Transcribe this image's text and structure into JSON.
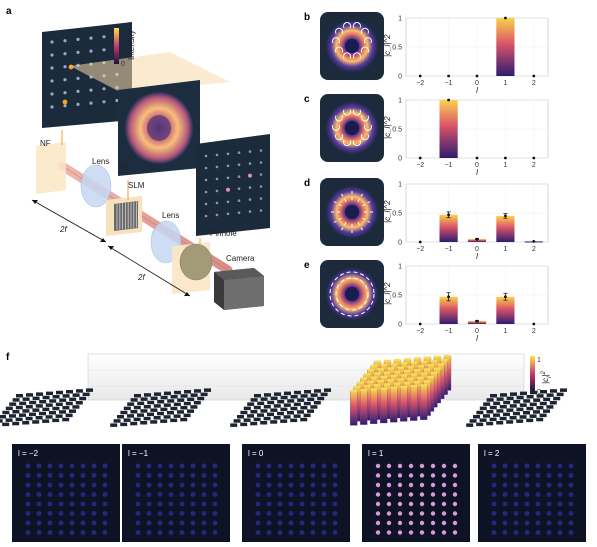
{
  "panels": {
    "a": {
      "label": "a",
      "texts": {
        "nf1": "NF",
        "nf2": "NF",
        "ff": "FF",
        "slm": "SLM",
        "lens1": "Lens",
        "lens2": "Lens",
        "pinhole": "Pinhole",
        "camera": "Camera",
        "twof1": "2f",
        "twof2": "2f"
      },
      "colorbar": {
        "title": "Intensity",
        "max": "1",
        "min": "0"
      }
    },
    "f": {
      "label": "f"
    }
  },
  "chart_data": [
    {
      "type": "bar",
      "panel": "b",
      "categories": [
        "−2",
        "−1",
        "0",
        "1",
        "2"
      ],
      "values": [
        0.0,
        0.0,
        0.0,
        1.0,
        0.0
      ],
      "errors": [
        0,
        0,
        0,
        0,
        0
      ],
      "ylabel": "|c_l|^2",
      "xlabel": "l",
      "ylim": [
        0,
        1
      ],
      "yticks": [
        "0",
        "0.5",
        "1"
      ],
      "grid": true
    },
    {
      "type": "bar",
      "panel": "c",
      "categories": [
        "−2",
        "−1",
        "0",
        "1",
        "2"
      ],
      "values": [
        0.0,
        1.0,
        0.0,
        0.0,
        0.0
      ],
      "errors": [
        0,
        0,
        0,
        0,
        0
      ],
      "ylabel": "|c_l|^2",
      "xlabel": "l",
      "ylim": [
        0,
        1
      ],
      "yticks": [
        "0",
        "0.5",
        "1"
      ],
      "grid": true
    },
    {
      "type": "bar",
      "panel": "d",
      "categories": [
        "−2",
        "−1",
        "0",
        "1",
        "2"
      ],
      "values": [
        0.0,
        0.47,
        0.05,
        0.45,
        0.01
      ],
      "errors": [
        0,
        0.05,
        0.01,
        0.04,
        0
      ],
      "ylabel": "|c_l|^2",
      "xlabel": "l",
      "ylim": [
        0,
        1
      ],
      "yticks": [
        "0",
        "0.5",
        "1"
      ],
      "grid": true
    },
    {
      "type": "bar",
      "panel": "e",
      "categories": [
        "−2",
        "−1",
        "0",
        "1",
        "2"
      ],
      "values": [
        0.0,
        0.47,
        0.05,
        0.47,
        0.0
      ],
      "errors": [
        0,
        0.07,
        0.01,
        0.06,
        0
      ],
      "ylabel": "|c_l|^2",
      "xlabel": "l",
      "ylim": [
        0,
        1
      ],
      "yticks": [
        "0",
        "0.5",
        "1"
      ],
      "grid": true
    },
    {
      "type": "heatmap",
      "panel": "f",
      "frames": [
        {
          "label": "l = −2",
          "value": 0.0
        },
        {
          "label": "l = −1",
          "value": 0.0
        },
        {
          "label": "l = 0",
          "value": 0.0
        },
        {
          "label": "l = 1",
          "value": 1.0
        },
        {
          "label": "l = 2",
          "value": 0.0
        }
      ],
      "colorbar": {
        "title": "|c_l|^2",
        "max": "1",
        "min": "0"
      }
    }
  ],
  "colors": {
    "bar_top": "#f9c94a",
    "bar_mid": "#c23b6a",
    "bar_bottom": "#2b1a6e",
    "panel_dark": "#1b2a3a",
    "beam": "#e7a5a0",
    "accent_orange": "#f6a21e"
  }
}
